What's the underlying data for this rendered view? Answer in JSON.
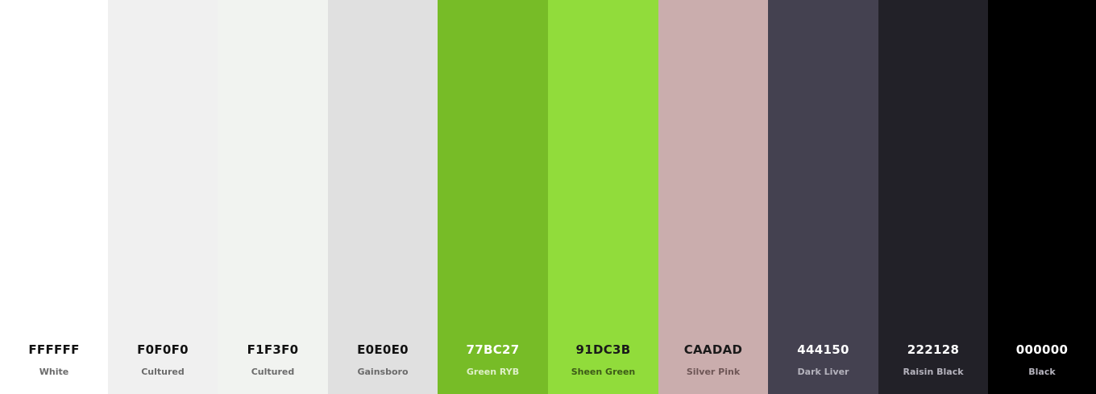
{
  "palette": [
    {
      "hex": "FFFFFF",
      "name": "White",
      "color": "#FFFFFF"
    },
    {
      "hex": "F0F0F0",
      "name": "Cultured",
      "color": "#F0F0F0"
    },
    {
      "hex": "F1F3F0",
      "name": "Cultured",
      "color": "#F1F3F0"
    },
    {
      "hex": "E0E0E0",
      "name": "Gainsboro",
      "color": "#E0E0E0"
    },
    {
      "hex": "77BC27",
      "name": "Green RYB",
      "color": "#77BC27"
    },
    {
      "hex": "91DC3B",
      "name": "Sheen Green",
      "color": "#91DC3B"
    },
    {
      "hex": "CAADAD",
      "name": "Silver Pink",
      "color": "#CAADAD"
    },
    {
      "hex": "444150",
      "name": "Dark Liver",
      "color": "#444150"
    },
    {
      "hex": "222128",
      "name": "Raisin Black",
      "color": "#222128"
    },
    {
      "hex": "000000",
      "name": "Black",
      "color": "#000000"
    }
  ]
}
